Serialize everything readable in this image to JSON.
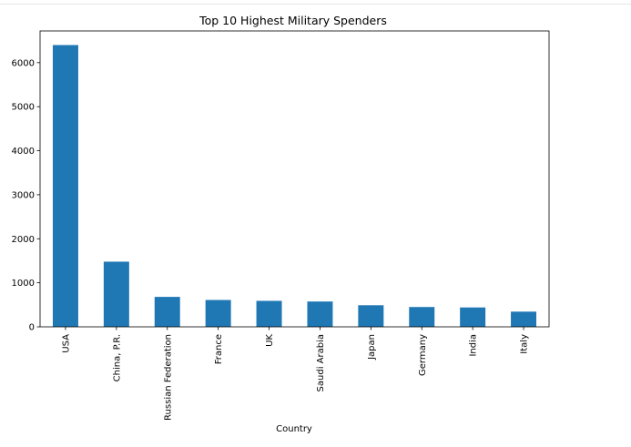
{
  "chart_data": {
    "type": "bar",
    "title": "Top 10 Highest Military Spenders",
    "xlabel": "Country",
    "ylabel": "",
    "categories": [
      "USA",
      "China, P.R.",
      "Russian Federation",
      "France",
      "UK",
      "Saudi Arabia",
      "Japan",
      "Germany",
      "India",
      "Italy"
    ],
    "values": [
      6400,
      1480,
      680,
      610,
      590,
      575,
      490,
      450,
      440,
      345
    ],
    "ylim": [
      0,
      6720
    ],
    "yticks": [
      0,
      1000,
      2000,
      3000,
      4000,
      5000,
      6000
    ],
    "legend": "none",
    "grid": false,
    "colors": {
      "bar": "#1f77b4",
      "axis": "#000000"
    }
  }
}
